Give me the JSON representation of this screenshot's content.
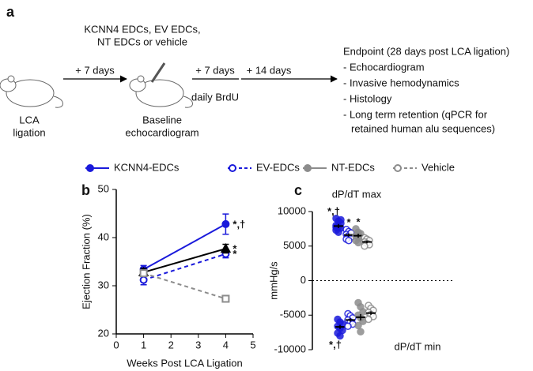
{
  "panel_a": {
    "label": "a",
    "treatment": [
      "KCNN4 EDCs, EV EDCs,",
      "NT EDCs or vehicle"
    ],
    "start": [
      "LCA",
      "ligation"
    ],
    "step1": "+ 7 days",
    "baseline": [
      "Baseline",
      "echocardiogram"
    ],
    "step2": "+ 7 days",
    "step2_note": "daily BrdU",
    "step3": "+ 14 days",
    "endpoint": [
      "Endpoint (28 days post LCA ligation)",
      "- Echocardiogram",
      "- Invasive hemodynamics",
      "- Histology",
      "- Long term retention (qPCR for",
      "retained human alu sequences)"
    ]
  },
  "legend": [
    {
      "name": "KCNN4-EDCs",
      "color": "#1a1adb",
      "line": "solid",
      "marker": "filled"
    },
    {
      "name": "EV-EDCs",
      "color": "#1a1adb",
      "line": "dashed",
      "marker": "open"
    },
    {
      "name": "NT-EDCs",
      "color": "#8c8c8c",
      "line": "solid",
      "marker": "filled"
    },
    {
      "name": "Vehicle",
      "color": "#8c8c8c",
      "line": "dashed",
      "marker": "open"
    }
  ],
  "chart_data": [
    {
      "type": "line",
      "panel_label": "b",
      "xlabel": "Weeks Post LCA Ligation",
      "ylabel": "Ejection Fraction (%)",
      "x": [
        1,
        4
      ],
      "xlim": [
        0,
        5
      ],
      "xticks": [
        0,
        1,
        2,
        3,
        4,
        5
      ],
      "ylim": [
        20,
        50
      ],
      "yticks": [
        20,
        30,
        40,
        50
      ],
      "series": [
        {
          "color": "#1a1adb",
          "dashed": false,
          "marker": "filled-circle",
          "values": [
            33.4,
            42.8
          ],
          "errors": [
            0.8,
            2.1
          ],
          "annotations": [
            null,
            "*,†"
          ]
        },
        {
          "color": "#1a1adb",
          "dashed": true,
          "marker": "open-circle",
          "values": [
            31.2,
            36.6
          ],
          "errors": [
            1.0,
            0.8
          ],
          "annotations": [
            null,
            "*"
          ]
        },
        {
          "color": "#000000",
          "dashed": false,
          "marker": "filled-triangle",
          "values": [
            32.8,
            37.7
          ],
          "errors": [
            0.8,
            0.9
          ],
          "annotations": [
            null,
            "*"
          ]
        },
        {
          "color": "#8c8c8c",
          "dashed": true,
          "marker": "open-square",
          "values": [
            32.6,
            27.3
          ],
          "errors": [
            0.6,
            0.6
          ],
          "annotations": [
            null,
            null
          ]
        }
      ]
    },
    {
      "type": "dot",
      "panel_label": "c",
      "ylabel": "mmHg/s",
      "ylim": [
        -10000,
        10000
      ],
      "yticks": [
        10000,
        5000,
        0,
        -5000,
        -10000
      ],
      "reference_line": 0,
      "groups": [
        {
          "label": "dP/dT max",
          "series": [
            {
              "color": "#1a1adb",
              "filled": true,
              "values": [
                9000,
                8600,
                8300,
                8000,
                7800,
                7600,
                7300,
                7000,
                8800,
                7700
              ],
              "mean": 7900,
              "error": 300,
              "annotation": "*,†"
            },
            {
              "color": "#1a1adb",
              "filled": false,
              "values": [
                7400,
                7100,
                6900,
                6700,
                6500,
                6300,
                6000,
                5800,
                6900
              ],
              "mean": 6600,
              "error": 250,
              "annotation": "*"
            },
            {
              "color": "#8c8c8c",
              "filled": true,
              "values": [
                7500,
                7000,
                6800,
                6500,
                6300,
                6100,
                5800,
                5500
              ],
              "mean": 6500,
              "error": 300,
              "annotation": "*"
            },
            {
              "color": "#8c8c8c",
              "filled": false,
              "values": [
                6200,
                6000,
                5800,
                5600,
                5400,
                5200,
                5000
              ],
              "mean": 5600,
              "error": 200,
              "annotation": null
            }
          ]
        },
        {
          "label": "dP/dT min",
          "series": [
            {
              "color": "#1a1adb",
              "filled": true,
              "values": [
                -5600,
                -6000,
                -6300,
                -6600,
                -6900,
                -7200,
                -7600,
                -8000
              ],
              "mean": -6700,
              "error": 300,
              "annotation": "*,†"
            },
            {
              "color": "#1a1adb",
              "filled": false,
              "values": [
                -4800,
                -5100,
                -5400,
                -5700,
                -6000,
                -6300,
                -6600
              ],
              "mean": -5700,
              "error": 250,
              "annotation": null
            },
            {
              "color": "#8c8c8c",
              "filled": true,
              "values": [
                -3200,
                -3800,
                -4500,
                -5000,
                -5400,
                -5900,
                -6500,
                -7400
              ],
              "mean": -5300,
              "error": 450,
              "annotation": null
            },
            {
              "color": "#8c8c8c",
              "filled": false,
              "values": [
                -3600,
                -4000,
                -4300,
                -4600,
                -4900,
                -5200,
                -5600
              ],
              "mean": -4700,
              "error": 250,
              "annotation": null
            }
          ]
        }
      ]
    }
  ]
}
